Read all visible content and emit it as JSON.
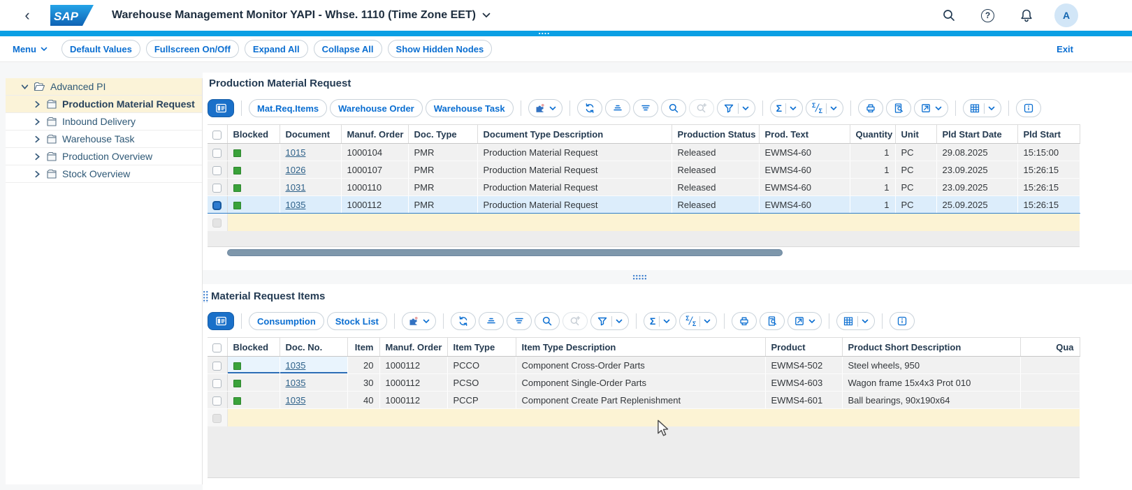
{
  "shellbar": {
    "back_glyph": "‹",
    "logo_text": "SAP",
    "title": "Warehouse Management Monitor YAPI - Whse. 1110 (Time Zone EET)",
    "help_glyph": "?",
    "avatar_initial": "A"
  },
  "actionbar": {
    "menu_label": "Menu",
    "buttons": [
      "Default Values",
      "Fullscreen On/Off",
      "Expand All",
      "Collapse All",
      "Show Hidden Nodes"
    ],
    "exit_label": "Exit"
  },
  "tree": {
    "root_label": "Advanced PI",
    "items": [
      "Production Material Request",
      "Inbound Delivery",
      "Warehouse Task",
      "Production Overview",
      "Stock Overview"
    ]
  },
  "pmr_section": {
    "title": "Production Material Request",
    "action_buttons": [
      "Mat.Req.Items",
      "Warehouse Order",
      "Warehouse Task"
    ],
    "table": {
      "fields": [
        {
          "type": "checkbox",
          "label": ""
        },
        {
          "type": "status",
          "key": "blocked",
          "label": "Blocked"
        },
        {
          "type": "link",
          "key": "document",
          "label": "Document"
        },
        {
          "key": "manuf_order",
          "label": "Manuf. Order"
        },
        {
          "key": "doc_type",
          "label": "Doc. Type"
        },
        {
          "key": "doc_type_desc",
          "label": "Document Type Description"
        },
        {
          "key": "production_status",
          "label": "Production Status"
        },
        {
          "key": "prod_text",
          "label": "Prod. Text"
        },
        {
          "key": "quantity",
          "label": "Quantity",
          "align": "right"
        },
        {
          "key": "unit",
          "label": "Unit"
        },
        {
          "key": "pld_start_date",
          "label": "Pld Start Date"
        },
        {
          "key": "pld_start",
          "label": "Pld Start"
        }
      ],
      "rows": [
        {
          "blocked": true,
          "document": "1015",
          "manuf_order": "1000104",
          "doc_type": "PMR",
          "doc_type_desc": "Production Material Request",
          "production_status": "Released",
          "prod_text": "EWMS4-60",
          "quantity": "1",
          "unit": "PC",
          "pld_start_date": "29.08.2025",
          "pld_start": "15:15:00"
        },
        {
          "blocked": true,
          "document": "1026",
          "manuf_order": "1000107",
          "doc_type": "PMR",
          "doc_type_desc": "Production Material Request",
          "production_status": "Released",
          "prod_text": "EWMS4-60",
          "quantity": "1",
          "unit": "PC",
          "pld_start_date": "23.09.2025",
          "pld_start": "15:26:15"
        },
        {
          "blocked": true,
          "document": "1031",
          "manuf_order": "1000110",
          "doc_type": "PMR",
          "doc_type_desc": "Production Material Request",
          "production_status": "Released",
          "prod_text": "EWMS4-60",
          "quantity": "1",
          "unit": "PC",
          "pld_start_date": "23.09.2025",
          "pld_start": "15:26:15"
        },
        {
          "blocked": true,
          "document": "1035",
          "manuf_order": "1000112",
          "doc_type": "PMR",
          "doc_type_desc": "Production Material Request",
          "production_status": "Released",
          "prod_text": "EWMS4-60",
          "quantity": "1",
          "unit": "PC",
          "pld_start_date": "25.09.2025",
          "pld_start": "15:26:15",
          "selected": true
        }
      ]
    }
  },
  "items_section": {
    "title": "Material Request Items",
    "action_buttons": [
      "Consumption",
      "Stock List"
    ],
    "table": {
      "fields": [
        {
          "type": "checkbox",
          "label": ""
        },
        {
          "type": "status",
          "key": "blocked",
          "label": "Blocked"
        },
        {
          "type": "link",
          "key": "doc_no",
          "label": "Doc. No."
        },
        {
          "key": "item",
          "label": "Item",
          "align": "right"
        },
        {
          "key": "manuf_order",
          "label": "Manuf. Order"
        },
        {
          "key": "item_type",
          "label": "Item Type"
        },
        {
          "key": "item_type_desc",
          "label": "Item Type Description"
        },
        {
          "key": "product",
          "label": "Product"
        },
        {
          "key": "product_desc",
          "label": "Product Short Description"
        },
        {
          "key": "quantity",
          "label": "Qua",
          "align": "right"
        }
      ],
      "rows": [
        {
          "blocked": true,
          "doc_no": "1035",
          "item": "20",
          "manuf_order": "1000112",
          "item_type": "PCCO",
          "item_type_desc": "Component Cross-Order Parts",
          "product": "EWMS4-502",
          "product_desc": "Steel wheels, 950",
          "quantity": "",
          "focus": true
        },
        {
          "blocked": true,
          "doc_no": "1035",
          "item": "30",
          "manuf_order": "1000112",
          "item_type": "PCSO",
          "item_type_desc": "Component Single-Order Parts",
          "product": "EWMS4-603",
          "product_desc": "Wagon frame 15x4x3 Prot 010",
          "quantity": ""
        },
        {
          "blocked": true,
          "doc_no": "1035",
          "item": "40",
          "manuf_order": "1000112",
          "item_type": "PCCP",
          "item_type_desc": "Component Create Part Replenishment",
          "product": "EWMS4-601",
          "product_desc": "Ball bearings, 90x190x64",
          "quantity": ""
        }
      ]
    }
  },
  "icons": {
    "sigma": "Σ"
  },
  "colors": {
    "accent_bar": "#0a9fe4",
    "link_blue": "#0a6ed1",
    "status_green": "#3aa23a",
    "selected_row": "#dcedfb",
    "empty_row_yellow": "#fcf3d4",
    "tree_highlight": "#fbf3d8"
  }
}
